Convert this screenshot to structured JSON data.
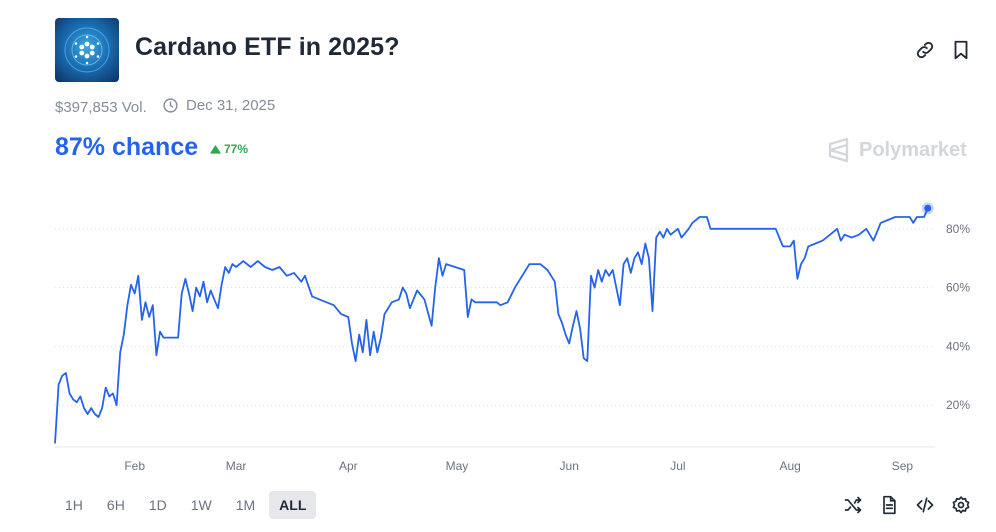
{
  "market": {
    "title": "Cardano ETF in 2025?",
    "volume": "$397,853 Vol.",
    "end_date": "Dec 31, 2025",
    "chance": "87% chance",
    "change": "77%",
    "brand": "Polymarket"
  },
  "icons": {
    "link": "link-icon",
    "bookmark": "bookmark-icon",
    "clock": "clock-icon",
    "up": "triangle-up-icon",
    "shuffle": "shuffle-icon",
    "document": "document-icon",
    "embed": "code-icon",
    "settings": "gear-icon"
  },
  "colors": {
    "line": "#2563eb",
    "up": "#2fa84f",
    "grid": "#d9dde2",
    "axis_text": "#6b7280"
  },
  "time_ranges": {
    "items": [
      "1H",
      "6H",
      "1D",
      "1W",
      "1M",
      "ALL"
    ],
    "selected": "ALL"
  },
  "chart_data": {
    "type": "line",
    "x_ticks": [
      "Feb",
      "Mar",
      "Apr",
      "May",
      "Jun",
      "Jul",
      "Aug",
      "Sep"
    ],
    "y_ticks": [
      "20%",
      "40%",
      "60%",
      "80%"
    ],
    "ylim": [
      0,
      100
    ],
    "xlim": [
      "2025-01-10",
      "2025-09-10"
    ],
    "grid": true,
    "series": [
      {
        "color": "#2563eb",
        "points": [
          [
            "2025-01-10",
            7
          ],
          [
            "2025-01-11",
            27
          ],
          [
            "2025-01-12",
            30
          ],
          [
            "2025-01-13",
            31
          ],
          [
            "2025-01-14",
            24
          ],
          [
            "2025-01-15",
            22
          ],
          [
            "2025-01-16",
            21
          ],
          [
            "2025-01-17",
            23
          ],
          [
            "2025-01-18",
            19
          ],
          [
            "2025-01-19",
            17
          ],
          [
            "2025-01-20",
            19
          ],
          [
            "2025-01-21",
            17
          ],
          [
            "2025-01-22",
            16
          ],
          [
            "2025-01-23",
            19
          ],
          [
            "2025-01-24",
            26
          ],
          [
            "2025-01-25",
            23
          ],
          [
            "2025-01-26",
            24
          ],
          [
            "2025-01-27",
            20
          ],
          [
            "2025-01-28",
            38
          ],
          [
            "2025-01-29",
            44
          ],
          [
            "2025-01-30",
            54
          ],
          [
            "2025-01-31",
            61
          ],
          [
            "2025-02-01",
            58
          ],
          [
            "2025-02-02",
            64
          ],
          [
            "2025-02-03",
            49
          ],
          [
            "2025-02-04",
            55
          ],
          [
            "2025-02-05",
            50
          ],
          [
            "2025-02-06",
            54
          ],
          [
            "2025-02-07",
            37
          ],
          [
            "2025-02-08",
            45
          ],
          [
            "2025-02-09",
            43
          ],
          [
            "2025-02-13",
            43
          ],
          [
            "2025-02-14",
            58
          ],
          [
            "2025-02-15",
            63
          ],
          [
            "2025-02-16",
            58
          ],
          [
            "2025-02-17",
            52
          ],
          [
            "2025-02-18",
            60
          ],
          [
            "2025-02-19",
            57
          ],
          [
            "2025-02-20",
            62
          ],
          [
            "2025-02-21",
            55
          ],
          [
            "2025-02-22",
            59
          ],
          [
            "2025-02-23",
            56
          ],
          [
            "2025-02-24",
            53
          ],
          [
            "2025-02-25",
            61
          ],
          [
            "2025-02-26",
            67
          ],
          [
            "2025-02-27",
            65
          ],
          [
            "2025-02-28",
            68
          ],
          [
            "2025-03-01",
            67
          ],
          [
            "2025-03-03",
            69
          ],
          [
            "2025-03-05",
            67
          ],
          [
            "2025-03-07",
            69
          ],
          [
            "2025-03-09",
            67
          ],
          [
            "2025-03-11",
            66
          ],
          [
            "2025-03-13",
            67
          ],
          [
            "2025-03-15",
            64
          ],
          [
            "2025-03-17",
            65
          ],
          [
            "2025-03-19",
            62
          ],
          [
            "2025-03-20",
            64
          ],
          [
            "2025-03-22",
            57
          ],
          [
            "2025-03-24",
            56
          ],
          [
            "2025-03-26",
            55
          ],
          [
            "2025-03-28",
            54
          ],
          [
            "2025-03-30",
            51
          ],
          [
            "2025-04-01",
            50
          ],
          [
            "2025-04-02",
            41
          ],
          [
            "2025-04-03",
            35
          ],
          [
            "2025-04-04",
            44
          ],
          [
            "2025-04-05",
            38
          ],
          [
            "2025-04-06",
            49
          ],
          [
            "2025-04-07",
            37
          ],
          [
            "2025-04-08",
            45
          ],
          [
            "2025-04-09",
            38
          ],
          [
            "2025-04-10",
            43
          ],
          [
            "2025-04-11",
            51
          ],
          [
            "2025-04-13",
            55
          ],
          [
            "2025-04-15",
            56
          ],
          [
            "2025-04-16",
            60
          ],
          [
            "2025-04-17",
            58
          ],
          [
            "2025-04-18",
            53
          ],
          [
            "2025-04-20",
            59
          ],
          [
            "2025-04-22",
            56
          ],
          [
            "2025-04-24",
            47
          ],
          [
            "2025-04-25",
            60
          ],
          [
            "2025-04-26",
            70
          ],
          [
            "2025-04-27",
            64
          ],
          [
            "2025-04-28",
            68
          ],
          [
            "2025-05-03",
            66
          ],
          [
            "2025-05-04",
            50
          ],
          [
            "2025-05-05",
            56
          ],
          [
            "2025-05-06",
            55
          ],
          [
            "2025-05-12",
            55
          ],
          [
            "2025-05-13",
            54
          ],
          [
            "2025-05-15",
            55
          ],
          [
            "2025-05-17",
            60
          ],
          [
            "2025-05-19",
            64
          ],
          [
            "2025-05-21",
            68
          ],
          [
            "2025-05-24",
            68
          ],
          [
            "2025-05-26",
            66
          ],
          [
            "2025-05-28",
            62
          ],
          [
            "2025-05-29",
            51
          ],
          [
            "2025-05-30",
            48
          ],
          [
            "2025-05-31",
            44
          ],
          [
            "2025-06-01",
            41
          ],
          [
            "2025-06-02",
            47
          ],
          [
            "2025-06-03",
            52
          ],
          [
            "2025-06-04",
            46
          ],
          [
            "2025-06-05",
            36
          ],
          [
            "2025-06-06",
            35
          ],
          [
            "2025-06-07",
            64
          ],
          [
            "2025-06-08",
            60
          ],
          [
            "2025-06-09",
            66
          ],
          [
            "2025-06-10",
            62
          ],
          [
            "2025-06-11",
            66
          ],
          [
            "2025-06-12",
            64
          ],
          [
            "2025-06-13",
            66
          ],
          [
            "2025-06-14",
            60
          ],
          [
            "2025-06-15",
            54
          ],
          [
            "2025-06-16",
            68
          ],
          [
            "2025-06-17",
            70
          ],
          [
            "2025-06-18",
            65
          ],
          [
            "2025-06-19",
            70
          ],
          [
            "2025-06-20",
            72
          ],
          [
            "2025-06-21",
            68
          ],
          [
            "2025-06-22",
            75
          ],
          [
            "2025-06-23",
            70
          ],
          [
            "2025-06-24",
            52
          ],
          [
            "2025-06-25",
            77
          ],
          [
            "2025-06-26",
            79
          ],
          [
            "2025-06-27",
            77
          ],
          [
            "2025-06-28",
            80
          ],
          [
            "2025-06-29",
            78
          ],
          [
            "2025-07-01",
            80
          ],
          [
            "2025-07-02",
            77
          ],
          [
            "2025-07-04",
            80
          ],
          [
            "2025-07-05",
            82
          ],
          [
            "2025-07-07",
            84
          ],
          [
            "2025-07-09",
            84
          ],
          [
            "2025-07-10",
            80
          ],
          [
            "2025-07-12",
            80
          ],
          [
            "2025-07-14",
            80
          ],
          [
            "2025-07-16",
            80
          ],
          [
            "2025-07-18",
            80
          ],
          [
            "2025-07-20",
            80
          ],
          [
            "2025-07-22",
            80
          ],
          [
            "2025-07-24",
            80
          ],
          [
            "2025-07-26",
            80
          ],
          [
            "2025-07-28",
            80
          ],
          [
            "2025-07-30",
            74
          ],
          [
            "2025-08-01",
            74
          ],
          [
            "2025-08-02",
            76
          ],
          [
            "2025-08-03",
            63
          ],
          [
            "2025-08-04",
            68
          ],
          [
            "2025-08-05",
            70
          ],
          [
            "2025-08-06",
            74
          ],
          [
            "2025-08-08",
            75
          ],
          [
            "2025-08-10",
            76
          ],
          [
            "2025-08-12",
            78
          ],
          [
            "2025-08-14",
            80
          ],
          [
            "2025-08-15",
            76
          ],
          [
            "2025-08-16",
            78
          ],
          [
            "2025-08-18",
            77
          ],
          [
            "2025-08-20",
            78
          ],
          [
            "2025-08-22",
            80
          ],
          [
            "2025-08-24",
            76
          ],
          [
            "2025-08-25",
            79
          ],
          [
            "2025-08-26",
            82
          ],
          [
            "2025-08-28",
            83
          ],
          [
            "2025-08-30",
            84
          ],
          [
            "2025-09-01",
            84
          ],
          [
            "2025-09-03",
            84
          ],
          [
            "2025-09-04",
            82
          ],
          [
            "2025-09-05",
            84
          ],
          [
            "2025-09-07",
            84
          ],
          [
            "2025-09-08",
            87
          ]
        ]
      }
    ]
  }
}
